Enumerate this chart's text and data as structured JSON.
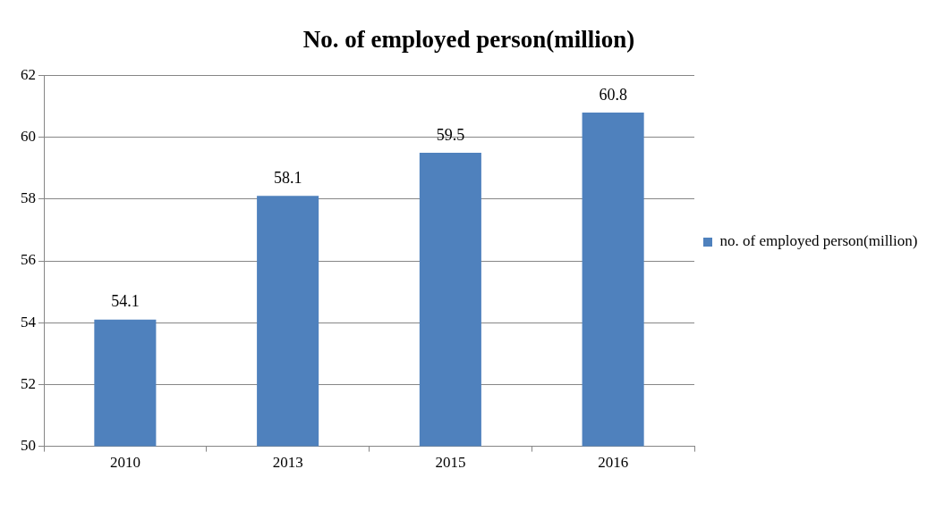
{
  "chart_data": {
    "type": "bar",
    "title": "No. of employed person(million)",
    "categories": [
      "2010",
      "2013",
      "2015",
      "2016"
    ],
    "series": [
      {
        "name": "no. of employed person(million)",
        "color": "#4f81bd",
        "values": [
          54.1,
          58.1,
          59.5,
          60.8
        ]
      }
    ],
    "ylim": [
      50,
      62
    ],
    "yticks": [
      50,
      52,
      54,
      56,
      58,
      60,
      62
    ],
    "grid": "y",
    "legend": "right",
    "data_labels": true
  }
}
